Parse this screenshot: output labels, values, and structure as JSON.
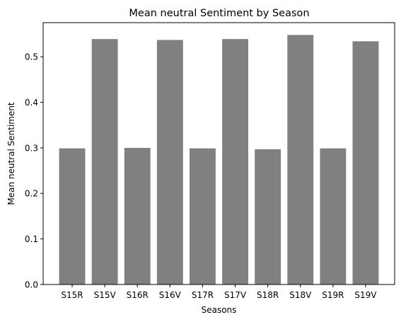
{
  "chart_data": {
    "type": "bar",
    "title": "Mean neutral Sentiment by Season",
    "xlabel": "Seasons",
    "ylabel": "Mean neutral Sentiment",
    "categories": [
      "S15R",
      "S15V",
      "S16R",
      "S16V",
      "S17R",
      "S17V",
      "S18R",
      "S18V",
      "S19R",
      "S19V"
    ],
    "values": [
      0.299,
      0.539,
      0.3,
      0.537,
      0.299,
      0.539,
      0.297,
      0.548,
      0.299,
      0.534
    ],
    "yticks": [
      "0.0",
      "0.1",
      "0.2",
      "0.3",
      "0.4",
      "0.5"
    ],
    "ylim": [
      0,
      0.575
    ],
    "grid": false,
    "bar_color": "#808080"
  }
}
